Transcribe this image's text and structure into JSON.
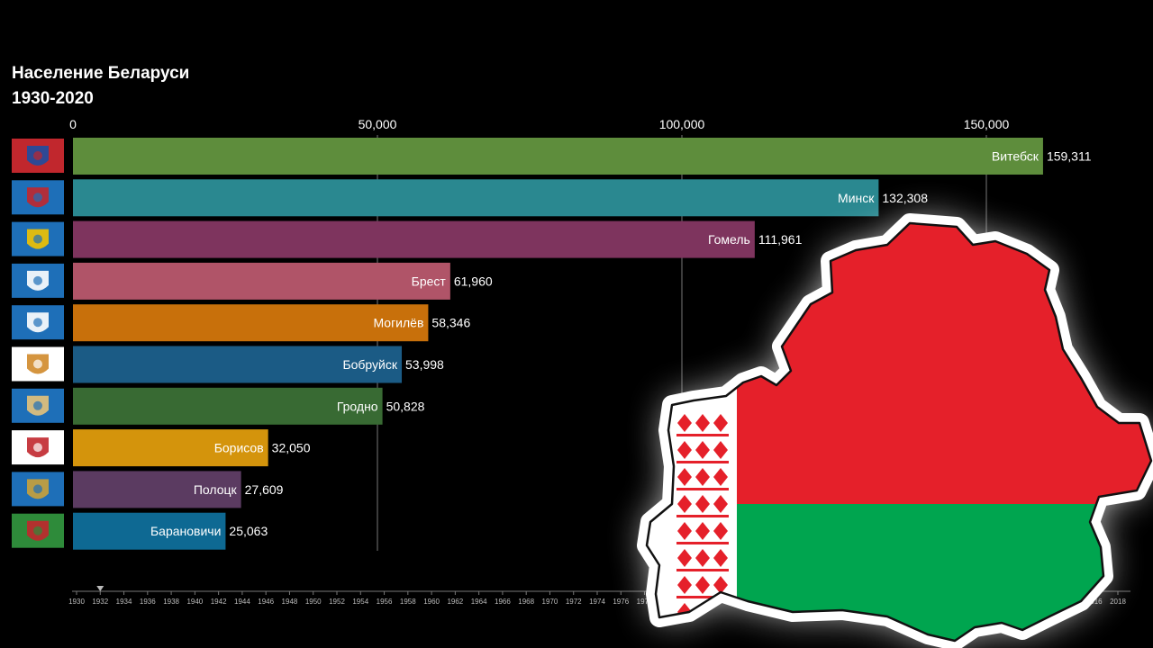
{
  "title_line1": "Население Беларуси",
  "title_line2": "1930-2020",
  "chart_data": {
    "type": "bar",
    "orientation": "horizontal",
    "title": "Население Беларуси 1930-2020",
    "xlim": [
      0,
      160000
    ],
    "x_ticks": [
      0,
      50000,
      100000,
      150000
    ],
    "x_tick_labels": [
      "0",
      "50,000",
      "100,000",
      "150,000"
    ],
    "grid": true,
    "categories": [
      "Витебск",
      "Минск",
      "Гомель",
      "Брест",
      "Могилёв",
      "Бобруйск",
      "Гродно",
      "Борисов",
      "Полоцк",
      "Барановичи"
    ],
    "values": [
      159311,
      132308,
      111961,
      61960,
      58346,
      53998,
      50828,
      32050,
      27609,
      25063
    ],
    "value_labels": [
      "159,311",
      "132,308",
      "111,961",
      "61,960",
      "58,346",
      "53,998",
      "50,828",
      "32,050",
      "27,609",
      "25,063"
    ],
    "colors": [
      "#5e8d3c",
      "#2a8890",
      "#7e345e",
      "#b05468",
      "#c8700b",
      "#1b5b85",
      "#386a33",
      "#d4940c",
      "#5b3b61",
      "#0e6993"
    ]
  },
  "timeline": {
    "years": [
      "1930",
      "1932",
      "1934",
      "1936",
      "1938",
      "1940",
      "1942",
      "1944",
      "1946",
      "1948",
      "1950",
      "1952",
      "1954",
      "1956",
      "1958",
      "1960",
      "1962",
      "1964",
      "1966",
      "1968",
      "1970",
      "1972",
      "1974",
      "1976",
      "1978",
      "2014",
      "2016",
      "2018"
    ],
    "current_marker_year": "1932"
  },
  "icons": [
    "vitebsk-coat-of-arms-icon",
    "minsk-coat-of-arms-icon",
    "gomel-coat-of-arms-icon",
    "brest-coat-of-arms-icon",
    "mogilev-coat-of-arms-icon",
    "bobruisk-coat-of-arms-icon",
    "grodno-coat-of-arms-icon",
    "borisov-coat-of-arms-icon",
    "polotsk-coat-of-arms-icon",
    "baranovichi-coat-of-arms-icon"
  ],
  "flag_colors": {
    "red": "#e5202a",
    "green": "#00a54f",
    "white": "#ffffff"
  }
}
